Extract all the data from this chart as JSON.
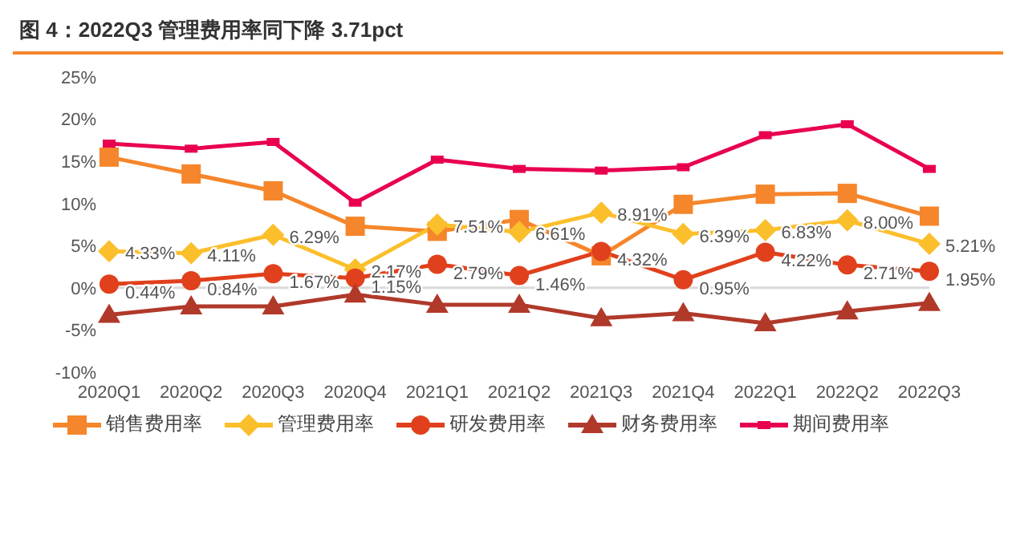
{
  "chart_data": {
    "type": "line",
    "title": "图 4：2022Q3 管理费用率同下降 3.71pct",
    "categories": [
      "2020Q1",
      "2020Q2",
      "2020Q3",
      "2020Q4",
      "2021Q1",
      "2021Q2",
      "2021Q3",
      "2021Q4",
      "2022Q1",
      "2022Q2",
      "2022Q3"
    ],
    "series": [
      {
        "name": "销售费用率",
        "color": "#f5862b",
        "marker": "square",
        "values": [
          15.5,
          13.5,
          11.5,
          7.3,
          6.7,
          8.1,
          3.8,
          9.9,
          11.1,
          11.2,
          8.5
        ]
      },
      {
        "name": "管理费用率",
        "color": "#fbbf2c",
        "marker": "diamond",
        "values": [
          4.33,
          4.11,
          6.29,
          2.17,
          7.51,
          6.61,
          8.91,
          6.39,
          6.83,
          8.0,
          5.21
        ],
        "value_labels": [
          "4.33%",
          "4.11%",
          "6.29%",
          "2.17%",
          "7.51%",
          "6.61%",
          "8.91%",
          "6.39%",
          "6.83%",
          "8.00%",
          "5.21%"
        ]
      },
      {
        "name": "研发费用率",
        "color": "#e0401c",
        "marker": "circle",
        "values": [
          0.44,
          0.84,
          1.67,
          1.15,
          2.79,
          1.46,
          4.32,
          0.95,
          4.22,
          2.71,
          1.95
        ],
        "value_labels": [
          "0.44%",
          "0.84%",
          "1.67%",
          "1.15%",
          "2.79%",
          "1.46%",
          "4.32%",
          "0.95%",
          "4.22%",
          "2.71%",
          "1.95%"
        ]
      },
      {
        "name": "财务费用率",
        "color": "#b0392a",
        "marker": "triangle",
        "values": [
          -3.2,
          -2.2,
          -2.2,
          -0.8,
          -2.0,
          -2.0,
          -3.6,
          -3.0,
          -4.2,
          -2.8,
          -1.8
        ]
      },
      {
        "name": "期间费用率",
        "color": "#e8004f",
        "marker": "square",
        "values": [
          17.1,
          16.5,
          17.3,
          10.1,
          15.2,
          14.1,
          13.9,
          14.3,
          18.1,
          19.4,
          14.1
        ]
      }
    ],
    "ylim": [
      -10,
      25
    ],
    "yticks": [
      {
        "value": -10,
        "label": "-10%"
      },
      {
        "value": -5,
        "label": "-5%"
      },
      {
        "value": 0,
        "label": "0%"
      },
      {
        "value": 5,
        "label": "5%"
      },
      {
        "value": 10,
        "label": "10%"
      },
      {
        "value": 15,
        "label": "15%"
      },
      {
        "value": 20,
        "label": "20%"
      },
      {
        "value": 25,
        "label": "25%"
      }
    ],
    "ref_lines": [
      {
        "axis": "y",
        "value": 0,
        "color": "#d9d9d9"
      }
    ],
    "grid": false,
    "legend": "bottom",
    "line_style": "solid"
  }
}
